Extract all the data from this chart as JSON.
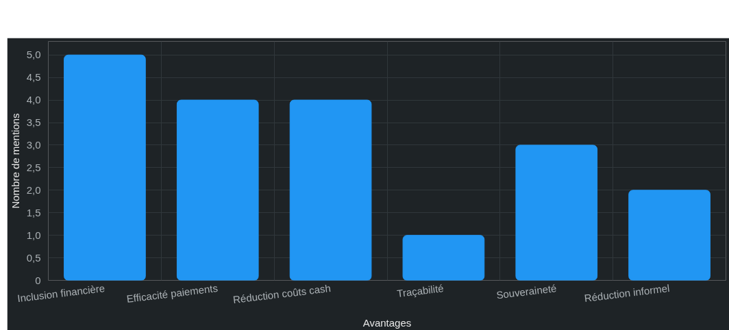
{
  "chart_data": {
    "type": "bar",
    "xlabel": "Avantages",
    "ylabel": "Nombre de mentions",
    "categories": [
      "Inclusion financière",
      "Efficacité paiements",
      "Réduction coûts cash",
      "Traçabilité",
      "Souveraineté",
      "Réduction informel"
    ],
    "values": [
      5,
      4,
      4,
      1,
      3,
      2
    ],
    "color": "#2196f3",
    "ylim": [
      0,
      5.3
    ],
    "yticks": [
      {
        "value": 0,
        "label": "0"
      },
      {
        "value": 0.5,
        "label": "0,5"
      },
      {
        "value": 1,
        "label": "1,0"
      },
      {
        "value": 1.5,
        "label": "1,5"
      },
      {
        "value": 2,
        "label": "2,0"
      },
      {
        "value": 2.5,
        "label": "2,5"
      },
      {
        "value": 3,
        "label": "3,0"
      },
      {
        "value": 3.5,
        "label": "3,5"
      },
      {
        "value": 4,
        "label": "4,0"
      },
      {
        "value": 4.5,
        "label": "4,5"
      },
      {
        "value": 5,
        "label": "5,0"
      }
    ],
    "grid": true
  }
}
